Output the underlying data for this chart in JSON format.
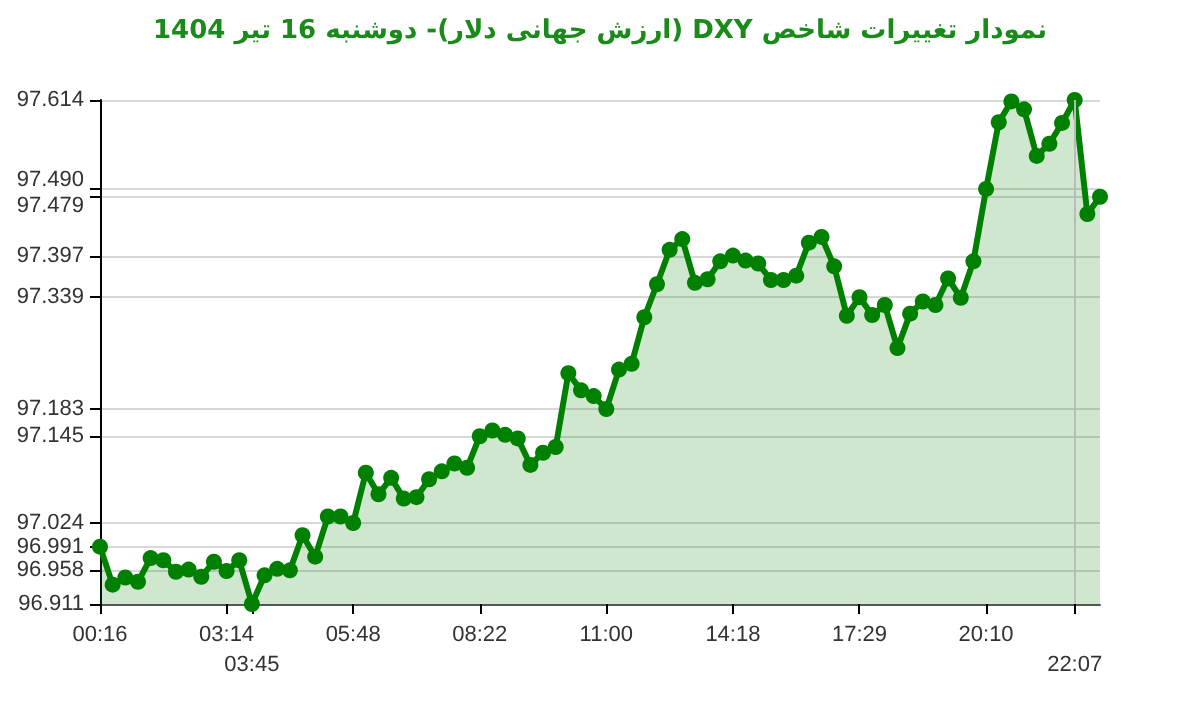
{
  "chart_data": {
    "type": "area",
    "title": "نمودار تغییرات شاخص DXY (ارزش جهانی دلار)-  دوشنبه  16 تیر 1404",
    "categories": [
      "00:16",
      null,
      null,
      null,
      null,
      null,
      null,
      null,
      null,
      null,
      "03:14",
      null,
      "03:45",
      null,
      null,
      null,
      null,
      null,
      null,
      null,
      "05:48",
      null,
      null,
      null,
      null,
      null,
      null,
      null,
      null,
      null,
      "08:22",
      null,
      null,
      null,
      null,
      null,
      null,
      null,
      null,
      null,
      "11:00",
      null,
      null,
      null,
      null,
      null,
      null,
      null,
      null,
      null,
      "14:18",
      null,
      null,
      null,
      null,
      null,
      null,
      null,
      null,
      null,
      "17:29",
      null,
      null,
      null,
      null,
      null,
      null,
      null,
      null,
      null,
      "20:10",
      null,
      null,
      null,
      null,
      null,
      null,
      "22:07",
      null,
      null
    ],
    "series": [
      {
        "color": "#008000",
        "values": [
          96.991,
          96.938,
          96.948,
          96.942,
          96.975,
          96.972,
          96.956,
          96.959,
          96.949,
          96.97,
          96.957,
          96.972,
          96.911,
          96.951,
          96.96,
          96.958,
          97.007,
          96.977,
          97.033,
          97.033,
          97.024,
          97.094,
          97.064,
          97.087,
          97.058,
          97.06,
          97.085,
          97.096,
          97.107,
          97.101,
          97.145,
          97.153,
          97.147,
          97.142,
          97.105,
          97.122,
          97.13,
          97.233,
          97.209,
          97.201,
          97.183,
          97.238,
          97.246,
          97.311,
          97.357,
          97.405,
          97.42,
          97.359,
          97.364,
          97.389,
          97.397,
          97.39,
          97.386,
          97.363,
          97.363,
          97.369,
          97.415,
          97.423,
          97.382,
          97.313,
          97.339,
          97.314,
          97.328,
          97.268,
          97.316,
          97.333,
          97.328,
          97.365,
          97.338,
          97.389,
          97.49,
          97.583,
          97.612,
          97.601,
          97.536,
          97.553,
          97.582,
          97.614,
          97.455,
          97.479
        ]
      }
    ],
    "ylim": [
      96.911,
      97.614
    ],
    "yticks": [
      96.911,
      96.958,
      96.991,
      97.024,
      97.145,
      97.183,
      97.339,
      97.397,
      97.479,
      {
        "value": 97.49,
        "label": "97.490"
      },
      97.614
    ],
    "grid": "y",
    "marker": "circle",
    "line_style": "solid",
    "ref_lines": [
      {
        "axis": "x",
        "value": "22:07",
        "color": "#bbbbbb"
      }
    ]
  }
}
